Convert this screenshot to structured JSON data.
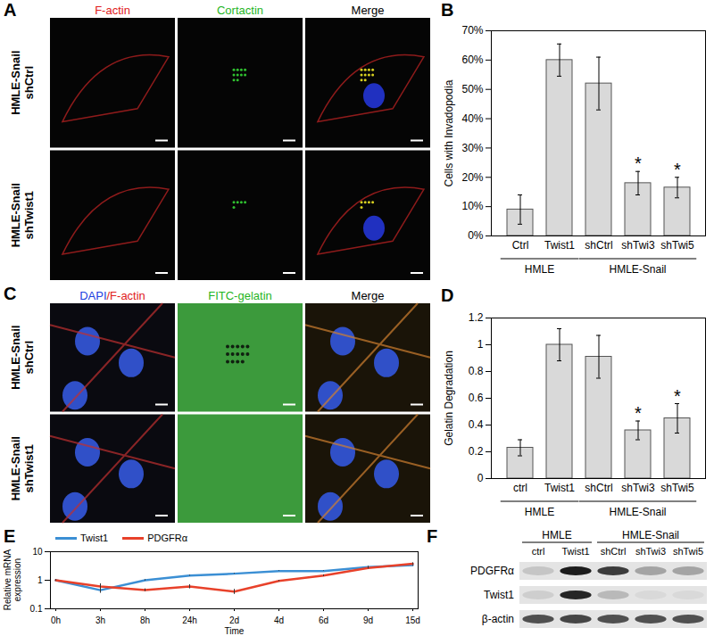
{
  "chart_data": [
    {
      "panel": "B",
      "type": "bar",
      "y_label": "Cells with Invadopodia",
      "categories": [
        "Ctrl",
        "Twist1",
        "shCtrl",
        "shTwi3",
        "shTwi5"
      ],
      "groups": [
        {
          "name": "HMLE",
          "categories": [
            "Ctrl",
            "Twist1"
          ]
        },
        {
          "name": "HMLE-Snail",
          "categories": [
            "shCtrl",
            "shTwi3",
            "shTwi5"
          ]
        }
      ],
      "values": [
        9,
        60,
        52,
        18,
        16.5
      ],
      "errors": [
        5,
        5.5,
        9,
        4,
        3.5
      ],
      "color": "#d9d9d9",
      "ylim": [
        0,
        70
      ],
      "yticks": [
        {
          "value": 0,
          "label": "0%"
        },
        {
          "value": 10,
          "label": "10%"
        },
        {
          "value": 20,
          "label": "20%"
        },
        {
          "value": 30,
          "label": "30%"
        },
        {
          "value": 40,
          "label": "40%"
        },
        {
          "value": 50,
          "label": "50%"
        },
        {
          "value": 60,
          "label": "60%"
        },
        {
          "value": 70,
          "label": "70%"
        }
      ],
      "annotations": [
        {
          "category": "shTwi3",
          "text": "*"
        },
        {
          "category": "shTwi5",
          "text": "*"
        }
      ]
    },
    {
      "panel": "D",
      "type": "bar",
      "y_label": "Gelatin Degradation",
      "categories": [
        "ctrl",
        "Twist1",
        "shCtrl",
        "shTwi3",
        "shTwi5"
      ],
      "groups": [
        {
          "name": "HMLE",
          "categories": [
            "ctrl",
            "Twist1"
          ]
        },
        {
          "name": "HMLE-Snail",
          "categories": [
            "shCtrl",
            "shTwi3",
            "shTwi5"
          ]
        }
      ],
      "values": [
        0.23,
        1.0,
        0.91,
        0.36,
        0.45
      ],
      "errors": [
        0.06,
        0.12,
        0.16,
        0.07,
        0.11
      ],
      "color": "#d9d9d9",
      "ylim": [
        0,
        1.2
      ],
      "yticks": [
        0,
        0.2,
        0.4,
        0.6,
        0.8,
        1,
        1.2
      ],
      "annotations": [
        {
          "category": "shTwi3",
          "text": "*"
        },
        {
          "category": "shTwi5",
          "text": "*"
        }
      ]
    },
    {
      "panel": "E",
      "type": "line",
      "x_label": "Time",
      "y_label": "Relative mRNA expression",
      "log": "y",
      "categories": [
        "0h",
        "3h",
        "8h",
        "24h",
        "2d",
        "4d",
        "6d",
        "9d",
        "15d"
      ],
      "series": [
        {
          "name": "Twist1",
          "color": "#3b8fd4",
          "values": [
            1,
            0.45,
            1.0,
            1.45,
            1.7,
            2.1,
            2.1,
            2.9,
            3.4
          ],
          "errors": [
            0.05,
            0.1,
            0.05,
            0.05,
            0.05,
            0.05,
            0.05,
            0.2,
            0.3
          ]
        },
        {
          "name": "PDGFRα",
          "color": "#e8412a",
          "values": [
            1,
            0.6,
            0.45,
            0.6,
            0.4,
            0.95,
            1.45,
            2.7,
            3.8
          ],
          "errors": [
            0.05,
            0.15,
            0.05,
            0.1,
            0.08,
            0.05,
            0.1,
            0.2,
            0.3
          ]
        }
      ],
      "legend": "top-left",
      "ylim": [
        0.1,
        10
      ],
      "yticks": [
        0.1,
        1,
        10
      ]
    }
  ],
  "images": [
    {
      "panel": "A",
      "columns": [
        [
          {
            "text": "F-actin",
            "color": "#e02020"
          }
        ],
        [
          {
            "text": "Cortactin",
            "color": "#1fb51f"
          }
        ],
        [
          {
            "text": "Merge",
            "color": "#000000"
          }
        ]
      ],
      "rows": [
        [
          "HMLE-Snail",
          "shCtrl"
        ],
        [
          "HMLE-Snail",
          "shTwist1"
        ]
      ]
    },
    {
      "panel": "C",
      "columns": [
        [
          {
            "text": "DAPI",
            "color": "#2040e0"
          },
          {
            "text": "/F-actin",
            "color": "#e02020"
          }
        ],
        [
          {
            "text": "FITC-gelatin",
            "color": "#1fb51f"
          }
        ],
        [
          {
            "text": "Merge",
            "color": "#000000"
          }
        ]
      ],
      "rows": [
        [
          "HMLE-Snail",
          "shCtrl"
        ],
        [
          "HMLE-Snail",
          "shTwist1"
        ]
      ]
    }
  ],
  "blot": {
    "panel": "F",
    "groups": [
      {
        "name": "HMLE",
        "lanes": [
          "ctrl",
          "Twist1"
        ]
      },
      {
        "name": "HMLE-Snail",
        "lanes": [
          "shCtrl",
          "shTwi3",
          "shTwi5"
        ]
      }
    ],
    "rows": [
      {
        "name": "PDGFRα",
        "levels": [
          0.15,
          0.95,
          0.8,
          0.3,
          0.3
        ]
      },
      {
        "name": "Twist1",
        "levels": [
          0.1,
          0.9,
          0.2,
          0.05,
          0.05
        ]
      },
      {
        "name": "β-actin",
        "levels": [
          0.7,
          0.75,
          0.7,
          0.7,
          0.7
        ]
      }
    ]
  }
}
